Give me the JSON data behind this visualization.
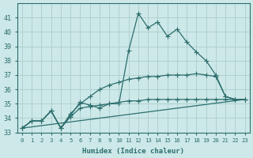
{
  "bg_color": "#cde8e8",
  "grid_color": "#b0d0d0",
  "line_color": "#2d6e6e",
  "xlabel": "Humidex (Indice chaleur)",
  "xlim": [
    -0.5,
    23.5
  ],
  "ylim": [
    33,
    42
  ],
  "xticks": [
    0,
    1,
    2,
    3,
    4,
    5,
    6,
    7,
    8,
    9,
    10,
    11,
    12,
    13,
    14,
    15,
    16,
    17,
    18,
    19,
    20,
    21,
    22,
    23
  ],
  "yticks": [
    33,
    34,
    35,
    36,
    37,
    38,
    39,
    40,
    41
  ],
  "lines": [
    {
      "x": [
        0,
        1,
        2,
        3,
        4,
        5,
        6,
        7,
        8,
        9,
        10,
        11,
        12,
        13,
        14,
        15,
        16,
        17,
        18,
        19,
        20,
        21,
        22,
        23
      ],
      "y": [
        33.3,
        33.8,
        33.8,
        34.5,
        33.3,
        34.2,
        35.1,
        34.9,
        34.7,
        35.0,
        35.0,
        38.7,
        41.3,
        40.3,
        40.7,
        39.7,
        40.2,
        39.3,
        38.6,
        38.0,
        37.0,
        35.5,
        35.3,
        35.3
      ]
    },
    {
      "x": [
        0,
        1,
        2,
        3,
        4,
        5,
        6,
        7,
        8,
        9,
        10,
        11,
        12,
        13,
        14,
        15,
        16,
        17,
        18,
        19,
        20,
        21,
        22,
        23
      ],
      "y": [
        33.3,
        33.8,
        33.8,
        34.5,
        33.3,
        34.3,
        35.0,
        35.5,
        36.0,
        36.3,
        36.5,
        36.7,
        36.8,
        36.9,
        36.9,
        37.0,
        37.0,
        37.0,
        37.1,
        37.0,
        36.9,
        35.5,
        35.3,
        35.3
      ]
    },
    {
      "x": [
        0,
        1,
        2,
        3,
        4,
        5,
        6,
        7,
        8,
        9,
        10,
        11,
        12,
        13,
        14,
        15,
        16,
        17,
        18,
        19,
        20,
        21,
        22,
        23
      ],
      "y": [
        33.3,
        33.8,
        33.8,
        34.5,
        33.3,
        34.1,
        34.7,
        34.8,
        34.9,
        35.0,
        35.1,
        35.2,
        35.2,
        35.3,
        35.3,
        35.3,
        35.3,
        35.3,
        35.3,
        35.3,
        35.3,
        35.3,
        35.3,
        35.3
      ]
    },
    {
      "x": [
        0,
        23
      ],
      "y": [
        33.3,
        35.3
      ]
    }
  ]
}
